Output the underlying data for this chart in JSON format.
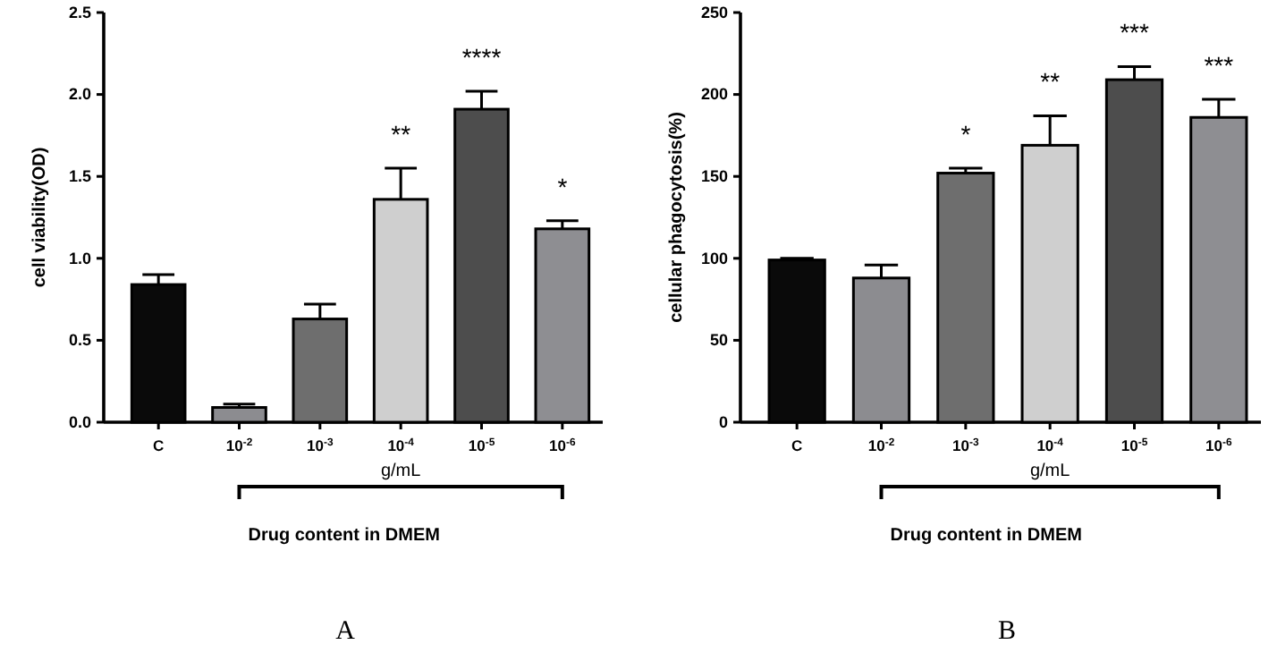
{
  "chart_data": [
    {
      "type": "bar",
      "ylabel": "cell viability(OD)",
      "categories": [
        "C",
        "10$^{-2}$",
        "10$^{-3}$",
        "10$^{-4}$",
        "10$^{-5}$",
        "10$^{-6}$"
      ],
      "values": [
        0.84,
        0.09,
        0.63,
        1.36,
        1.91,
        1.18
      ],
      "errors": [
        0.06,
        0.02,
        0.09,
        0.19,
        0.11,
        0.05
      ],
      "colors": [
        "#0a0a0a",
        "#8c8c90",
        "#6e6e6e",
        "#cfcfcf",
        "#4d4d4d",
        "#8e8e92"
      ],
      "ylim": [
        0,
        2.5
      ],
      "yticks": [
        {
          "value": 0,
          "label": "0.0"
        },
        {
          "value": 0.5,
          "label": "0.5"
        },
        {
          "value": 1,
          "label": "1.0"
        },
        {
          "value": 1.5,
          "label": "1.5"
        },
        {
          "value": 2,
          "label": "2.0"
        },
        {
          "value": 2.5,
          "label": "2.5"
        }
      ],
      "annotations": [
        "g/mL",
        "Drug content in DMEM",
        "A",
        "**",
        "****",
        "*"
      ]
    },
    {
      "type": "bar",
      "ylabel": "cellular phagocytosis(%)",
      "categories": [
        "C",
        "10$^{-2}$",
        "10$^{-3}$",
        "10$^{-4}$",
        "10$^{-5}$",
        "10$^{-6}$"
      ],
      "values": [
        99,
        88,
        152,
        169,
        209,
        186
      ],
      "errors": [
        1,
        8,
        3,
        18,
        8,
        11
      ],
      "colors": [
        "#0a0a0a",
        "#8c8c90",
        "#6e6e6e",
        "#cfcfcf",
        "#4d4d4d",
        "#8e8e92"
      ],
      "ylim": [
        0,
        250
      ],
      "yticks": [
        0,
        50,
        100,
        150,
        200,
        250
      ],
      "annotations": [
        "g/mL",
        "Drug content in DMEM",
        "B",
        "*",
        "**",
        "***",
        "***"
      ]
    }
  ]
}
